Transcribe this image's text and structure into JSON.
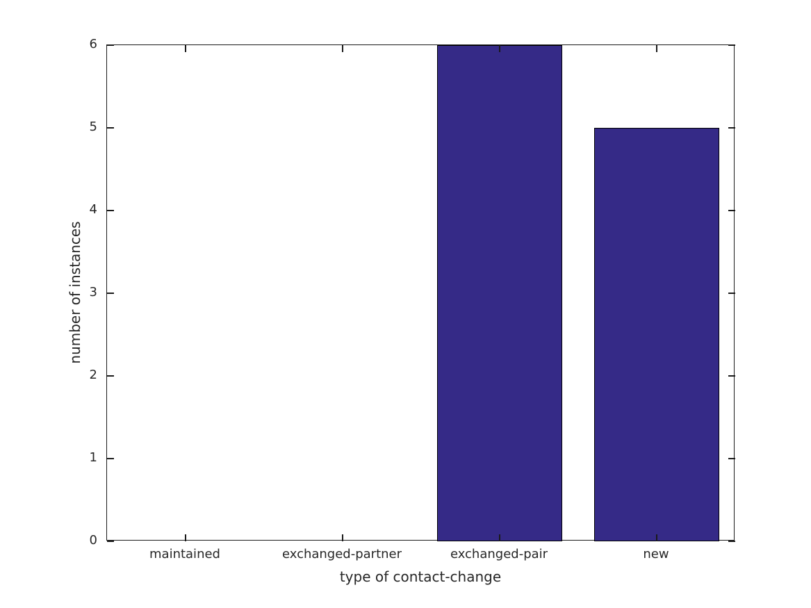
{
  "figure": {
    "background": "#ffffff"
  },
  "chart_data": {
    "type": "bar",
    "categories": [
      "maintained",
      "exchanged-partner",
      "exchanged-pair",
      "new"
    ],
    "values": [
      0,
      0,
      6,
      5
    ],
    "title": "",
    "xlabel": "type of contact-change",
    "ylabel": "number of instances",
    "ylim": [
      0,
      6
    ],
    "yticks": [
      0,
      1,
      2,
      3,
      4,
      5,
      6
    ],
    "bar_color": "#352a87",
    "bar_edge_color": "#000000",
    "axis_color": "#1a1a1a",
    "text_color": "#262626",
    "bar_width_ratio": 0.8,
    "grid": false,
    "tick_direction": "in",
    "box": true,
    "legend_position": "none"
  }
}
